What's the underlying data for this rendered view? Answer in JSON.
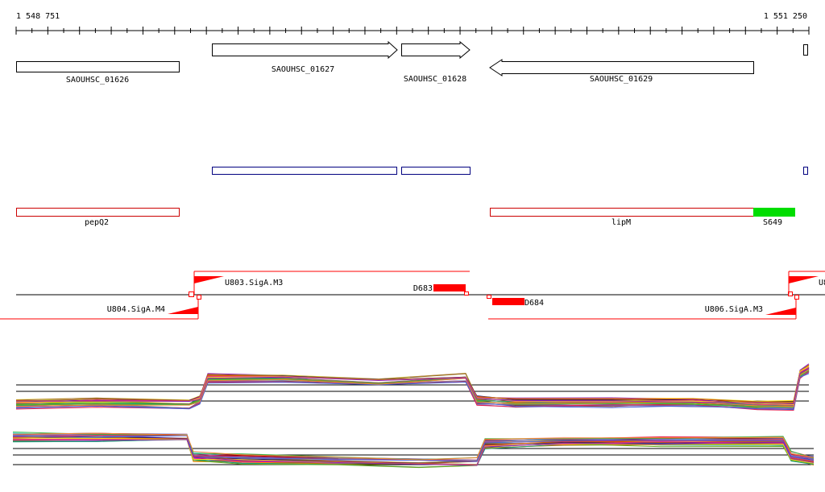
{
  "coords": {
    "start": "1 548 751",
    "end": "1 551 250"
  },
  "genes": [
    {
      "label": "SAOUHSC_01626",
      "strand": "none"
    },
    {
      "label": "SAOUHSC_01627",
      "strand": "forward"
    },
    {
      "label": "SAOUHSC_01628",
      "strand": "forward"
    },
    {
      "label": "SAOUHSC_01629",
      "strand": "reverse"
    }
  ],
  "features": [
    {
      "label": "pepQ2"
    },
    {
      "label": "lipM"
    },
    {
      "label": "S649",
      "color": "#00dd00"
    }
  ],
  "promoters": [
    {
      "label": "U803.SigA.M3"
    },
    {
      "label": "U804.SigA.M4"
    },
    {
      "label": "U806.SigA.M3"
    },
    {
      "label": "U8"
    }
  ],
  "terminators": [
    {
      "label": "D683"
    },
    {
      "label": "D684"
    }
  ],
  "colors": {
    "gene_outline": "#000000",
    "cds_box": "#000080",
    "feature_box": "#cc0000",
    "promoter": "#ff0000",
    "terminator": "#ff0000",
    "highlight": "#00dd00"
  }
}
